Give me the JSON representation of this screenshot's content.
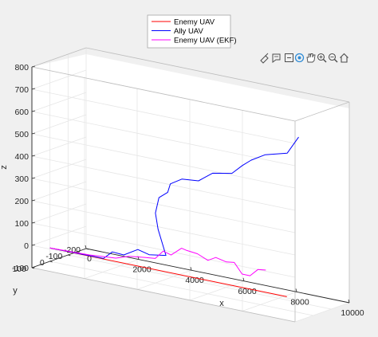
{
  "figure": {
    "toolbar": [
      {
        "name": "brush-icon"
      },
      {
        "name": "data-tips-icon"
      },
      {
        "name": "datacursor-icon"
      },
      {
        "name": "rotate-3d-icon"
      },
      {
        "name": "pan-hand-icon"
      },
      {
        "name": "zoom-in-icon"
      },
      {
        "name": "zoom-out-icon"
      },
      {
        "name": "home-icon"
      }
    ]
  },
  "chart_data": {
    "type": "line",
    "dimensions": "3d",
    "xlabel": "x",
    "ylabel": "y",
    "zlabel": "z",
    "xlim": [
      0,
      10000
    ],
    "ylim": [
      -200,
      100
    ],
    "zlim": [
      -100,
      800
    ],
    "xticks": [
      0,
      2000,
      4000,
      6000,
      8000,
      10000
    ],
    "yticks": [
      -200,
      -100,
      0,
      100
    ],
    "zticks": [
      -100,
      0,
      100,
      200,
      300,
      400,
      500,
      600,
      700,
      800
    ],
    "grid": true,
    "box": true,
    "legend_position": "top-center",
    "series": [
      {
        "name": "Enemy UAV",
        "color": "#ff0000",
        "x": [
          0,
          9000
        ],
        "y": [
          0,
          0
        ],
        "z": [
          -40,
          -40
        ]
      },
      {
        "name": "Ally UAV",
        "color": "#0000ff",
        "x": [
          0,
          2000,
          2300,
          2700,
          3200,
          3600,
          4200,
          3900,
          3800,
          3900,
          4200,
          4300,
          4700,
          5300,
          5800,
          6500,
          6900,
          7200,
          7700,
          8500,
          8900
        ],
        "y": [
          0,
          -5,
          -10,
          -15,
          -20,
          -25,
          -30,
          -30,
          -30,
          -35,
          -40,
          -40,
          -45,
          -50,
          -55,
          -60,
          -60,
          -65,
          -70,
          -75,
          -80
        ],
        "z": [
          -40,
          -40,
          -5,
          -10,
          25,
          10,
          20,
          130,
          200,
          270,
          300,
          340,
          370,
          375,
          420,
          435,
          480,
          510,
          545,
          570,
          650
        ]
      },
      {
        "name": "Enemy UAV (EKF)",
        "color": "#ff00ff",
        "x": [
          0,
          1500,
          2500,
          3000,
          3300,
          3600,
          4000,
          4300,
          4600,
          5000,
          5200,
          5600,
          6000,
          6300,
          6700,
          7000,
          7300,
          7600,
          7900,
          8200
        ],
        "y": [
          0,
          0,
          0,
          0,
          0,
          0,
          0,
          0,
          0,
          0,
          0,
          0,
          0,
          0,
          0,
          0,
          0,
          0,
          0,
          0
        ],
        "z": [
          -40,
          -35,
          -25,
          -5,
          0,
          5,
          10,
          50,
          40,
          80,
          75,
          70,
          50,
          70,
          60,
          65,
          20,
          20,
          55,
          60
        ]
      }
    ]
  }
}
